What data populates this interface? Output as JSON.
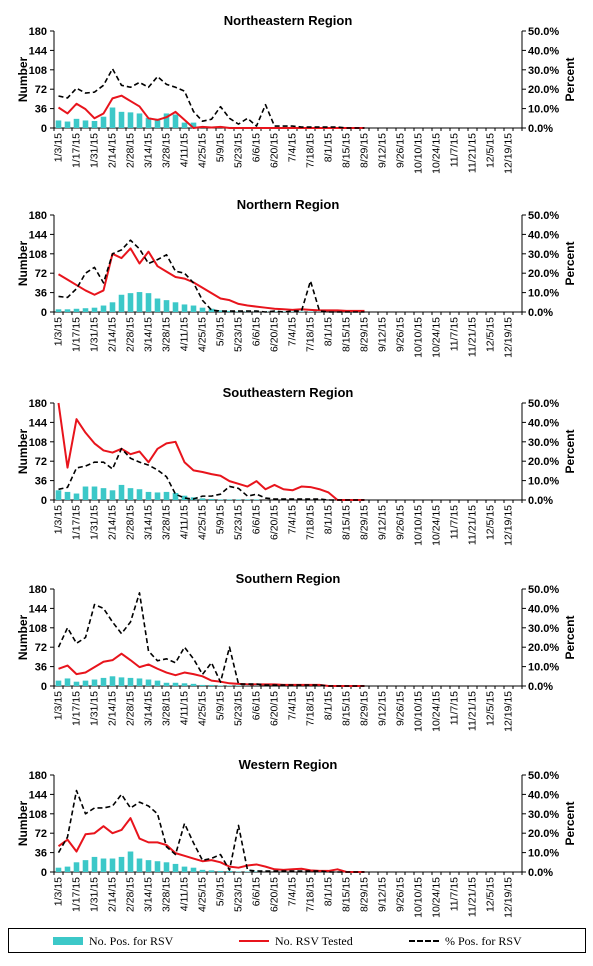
{
  "chart_data": [
    {
      "type": "bar+line",
      "title": "Northeastern Region",
      "ylabel": "Number",
      "y2label": "Percent",
      "ylim": [
        0,
        180
      ],
      "y2lim": [
        0,
        0.5
      ],
      "yticks": [
        "0",
        "36",
        "72",
        "108",
        "144",
        "180"
      ],
      "y2ticks": [
        "0.0%",
        "10.0%",
        "20.0%",
        "30.0%",
        "40.0%",
        "50.0%"
      ],
      "bars": [
        14,
        12,
        17,
        14,
        13,
        21,
        38,
        30,
        29,
        27,
        19,
        17,
        27,
        25,
        10,
        10,
        2,
        2,
        3,
        2,
        1,
        1,
        2,
        1,
        1,
        1,
        1,
        1,
        0,
        0,
        0,
        0,
        0,
        0,
        0
      ],
      "tested": [
        38,
        27,
        45,
        35,
        18,
        27,
        55,
        60,
        50,
        40,
        18,
        15,
        20,
        30,
        15,
        0,
        2,
        1,
        2,
        0,
        0,
        0,
        0,
        0,
        0,
        0,
        0,
        0,
        0,
        0,
        0,
        0,
        0,
        0,
        0
      ],
      "pct": [
        0.165,
        0.155,
        0.205,
        0.18,
        0.185,
        0.22,
        0.305,
        0.22,
        0.21,
        0.235,
        0.21,
        0.265,
        0.225,
        0.21,
        0.19,
        0.085,
        0.035,
        0.045,
        0.11,
        0.05,
        0.02,
        0.05,
        0.01,
        0.12,
        0.01,
        0.01,
        0.01,
        0.005,
        0.005,
        0.005,
        0.005,
        0.005,
        0.0,
        0.0,
        0.0
      ]
    },
    {
      "type": "bar+line",
      "title": "Northern Region",
      "ylabel": "Number",
      "y2label": "Percent",
      "ylim": [
        0,
        180
      ],
      "y2lim": [
        0,
        0.5
      ],
      "yticks": [
        "0",
        "36",
        "72",
        "108",
        "144",
        "180"
      ],
      "y2ticks": [
        "0.0%",
        "10.0%",
        "20.0%",
        "30.0%",
        "40.0%",
        "50.0%"
      ],
      "bars": [
        5,
        5,
        6,
        7,
        8,
        12,
        18,
        32,
        35,
        37,
        35,
        25,
        22,
        18,
        14,
        12,
        8,
        6,
        3,
        2,
        1,
        1,
        1,
        1,
        1,
        1,
        1,
        1,
        1,
        1,
        0,
        0,
        0,
        0,
        0
      ],
      "tested": [
        70,
        60,
        50,
        40,
        32,
        40,
        108,
        100,
        118,
        90,
        112,
        85,
        75,
        65,
        62,
        55,
        45,
        35,
        25,
        22,
        15,
        12,
        10,
        8,
        6,
        5,
        4,
        5,
        4,
        3,
        3,
        3,
        2,
        2,
        2
      ],
      "pct": [
        0.08,
        0.075,
        0.12,
        0.2,
        0.23,
        0.15,
        0.3,
        0.32,
        0.37,
        0.325,
        0.25,
        0.27,
        0.295,
        0.21,
        0.2,
        0.15,
        0.06,
        0.01,
        0.005,
        0.005,
        0.005,
        0.005,
        0.005,
        0.0,
        0.005,
        0.0,
        0.005,
        0.005,
        0.16,
        0.005,
        0.0,
        0.0,
        0.0,
        0.0,
        0.0
      ]
    },
    {
      "type": "bar+line",
      "title": "Southeastern Region",
      "ylabel": "Number",
      "y2label": "Percent",
      "ylim": [
        0,
        180
      ],
      "y2lim": [
        0,
        0.5
      ],
      "yticks": [
        "0",
        "36",
        "72",
        "108",
        "144",
        "180"
      ],
      "y2ticks": [
        "0.0%",
        "10.0%",
        "20.0%",
        "30.0%",
        "40.0%",
        "50.0%"
      ],
      "bars": [
        18,
        15,
        12,
        25,
        25,
        22,
        18,
        28,
        22,
        20,
        15,
        14,
        15,
        13,
        8,
        5,
        3,
        2,
        1,
        1,
        1,
        1,
        1,
        0,
        0,
        0,
        0,
        0,
        0,
        0,
        0,
        0,
        0,
        0,
        0
      ],
      "tested": [
        180,
        60,
        150,
        125,
        105,
        92,
        88,
        95,
        85,
        90,
        70,
        95,
        105,
        108,
        70,
        55,
        52,
        48,
        45,
        35,
        30,
        25,
        35,
        20,
        28,
        20,
        18,
        25,
        24,
        20,
        14,
        0,
        0,
        0,
        0
      ],
      "pct": [
        0.055,
        0.065,
        0.165,
        0.175,
        0.195,
        0.195,
        0.16,
        0.265,
        0.215,
        0.195,
        0.18,
        0.155,
        0.12,
        0.03,
        0.01,
        0.005,
        0.02,
        0.02,
        0.03,
        0.07,
        0.06,
        0.02,
        0.03,
        0.01,
        0.005,
        0.005,
        0.005,
        0.005,
        0.005,
        0.005,
        0.0,
        0.0,
        0.0,
        0.0,
        0.0
      ]
    },
    {
      "type": "bar+line",
      "title": "Southern Region",
      "ylabel": "Number",
      "y2label": "Percent",
      "ylim": [
        0,
        180
      ],
      "y2lim": [
        0,
        0.5
      ],
      "yticks": [
        "0",
        "36",
        "72",
        "108",
        "144",
        "180"
      ],
      "y2ticks": [
        "0.0%",
        "10.0%",
        "20.0%",
        "30.0%",
        "40.0%",
        "50.0%"
      ],
      "bars": [
        10,
        14,
        8,
        10,
        12,
        15,
        18,
        16,
        15,
        14,
        12,
        10,
        6,
        6,
        5,
        4,
        2,
        2,
        1,
        1,
        1,
        1,
        1,
        0,
        0,
        0,
        0,
        0,
        0,
        0,
        0,
        0,
        0,
        0,
        0
      ],
      "tested": [
        32,
        38,
        22,
        25,
        35,
        45,
        48,
        60,
        48,
        35,
        40,
        32,
        25,
        20,
        25,
        22,
        18,
        10,
        8,
        5,
        4,
        3,
        3,
        3,
        3,
        2,
        2,
        2,
        2,
        2,
        0,
        0,
        0,
        0,
        0
      ],
      "pct": [
        0.2,
        0.3,
        0.22,
        0.25,
        0.42,
        0.4,
        0.33,
        0.27,
        0.33,
        0.48,
        0.18,
        0.13,
        0.14,
        0.12,
        0.2,
        0.14,
        0.06,
        0.12,
        0.02,
        0.2,
        0.01,
        0.01,
        0.01,
        0.005,
        0.005,
        0.005,
        0.005,
        0.005,
        0.005,
        0.005,
        0.0,
        0.0,
        0.0,
        0.0,
        0.0
      ]
    },
    {
      "type": "bar+line",
      "title": "Western Region",
      "ylabel": "Number",
      "y2label": "Percent",
      "ylim": [
        0,
        180
      ],
      "y2lim": [
        0,
        0.5
      ],
      "yticks": [
        "0",
        "36",
        "72",
        "108",
        "144",
        "180"
      ],
      "y2ticks": [
        "0.0%",
        "10.0%",
        "20.0%",
        "30.0%",
        "40.0%",
        "50.0%"
      ],
      "bars": [
        8,
        10,
        18,
        22,
        28,
        25,
        25,
        28,
        38,
        25,
        22,
        20,
        18,
        15,
        10,
        8,
        4,
        3,
        2,
        2,
        1,
        1,
        1,
        0,
        0,
        0,
        0,
        0,
        0,
        0,
        0,
        0,
        0,
        0,
        0
      ],
      "tested": [
        48,
        60,
        38,
        70,
        72,
        85,
        72,
        78,
        100,
        62,
        55,
        55,
        50,
        35,
        30,
        25,
        20,
        22,
        18,
        10,
        8,
        12,
        14,
        10,
        5,
        4,
        5,
        6,
        3,
        2,
        2,
        5,
        0,
        0,
        0
      ],
      "pct": [
        0.1,
        0.18,
        0.42,
        0.3,
        0.33,
        0.33,
        0.34,
        0.4,
        0.33,
        0.36,
        0.34,
        0.3,
        0.13,
        0.09,
        0.25,
        0.15,
        0.06,
        0.07,
        0.09,
        0.01,
        0.24,
        0.01,
        0.005,
        0.005,
        0.005,
        0.005,
        0.005,
        0.005,
        0.005,
        0.005,
        0.0,
        0.0,
        0.0,
        0.0,
        0.0
      ]
    }
  ],
  "x_labels": [
    "1/3/15",
    "1/17/15",
    "1/31/15",
    "2/14/15",
    "2/28/15",
    "3/14/15",
    "3/28/15",
    "4/11/15",
    "4/25/15",
    "5/9/15",
    "5/23/15",
    "6/6/15",
    "6/20/15",
    "7/4/15",
    "7/18/15",
    "8/1/15",
    "8/15/15",
    "8/29/15",
    "9/12/15",
    "9/26/15",
    "10/10/15",
    "10/24/15",
    "11/7/15",
    "11/21/15",
    "12/5/15",
    "12/19/15"
  ],
  "legend": {
    "bars_label": "No. Pos. for RSV",
    "tested_label": "No. RSV Tested",
    "pct_label": "% Pos. for RSV"
  },
  "colors": {
    "bars": "#3cc8c8",
    "tested": "#e8141c",
    "pct": "#000000"
  }
}
